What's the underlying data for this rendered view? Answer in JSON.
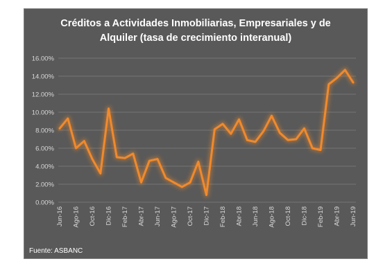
{
  "chart_data": {
    "type": "line",
    "title": "Créditos a Actividades Inmobiliarias, Empresariales y de Alquiler (tasa de crecimiento interanual)",
    "title_lines": [
      "Créditos a Actividades Inmobiliarias, Empresariales y de",
      "Alquiler (tasa de crecimiento interanual)"
    ],
    "xlabel": "",
    "ylabel": "",
    "ylim": [
      0,
      16
    ],
    "y_ticks": [
      "0.00%",
      "2.00%",
      "4.00%",
      "6.00%",
      "8.00%",
      "10.00%",
      "12.00%",
      "14.00%",
      "16.00%"
    ],
    "y_tick_values": [
      0,
      2,
      4,
      6,
      8,
      10,
      12,
      14,
      16
    ],
    "x_tick_labels": [
      "Jun-16",
      "Ago-16",
      "Oct-16",
      "Dic-16",
      "Feb-17",
      "Abr-17",
      "Jun-17",
      "Ago-17",
      "Oct-17",
      "Dic-17",
      "Feb-18",
      "Abr-18",
      "Jun-18",
      "Ago-18",
      "Oct-18",
      "Dic-18",
      "Feb-19",
      "Abr-19",
      "Jun-19"
    ],
    "x_tick_every": 2,
    "categories": [
      "Jun-16",
      "Jul-16",
      "Ago-16",
      "Sep-16",
      "Oct-16",
      "Nov-16",
      "Dic-16",
      "Ene-17",
      "Feb-17",
      "Mar-17",
      "Abr-17",
      "May-17",
      "Jun-17",
      "Jul-17",
      "Ago-17",
      "Sep-17",
      "Oct-17",
      "Nov-17",
      "Dic-17",
      "Ene-18",
      "Feb-18",
      "Mar-18",
      "Abr-18",
      "May-18",
      "Jun-18",
      "Jul-18",
      "Ago-18",
      "Sep-18",
      "Oct-18",
      "Nov-18",
      "Dic-18",
      "Ene-19",
      "Feb-19",
      "Mar-19",
      "Abr-19",
      "May-19",
      "Jun-19"
    ],
    "series": [
      {
        "values": [
          8.2,
          9.3,
          6.0,
          6.8,
          4.8,
          3.2,
          10.4,
          5.0,
          4.9,
          5.4,
          2.2,
          4.6,
          4.8,
          2.7,
          2.2,
          1.7,
          2.2,
          4.5,
          0.8,
          8.1,
          8.7,
          7.6,
          9.2,
          6.9,
          6.7,
          7.9,
          9.6,
          7.7,
          6.9,
          7.0,
          8.2,
          6.0,
          5.8,
          13.1,
          13.8,
          14.7,
          13.3
        ],
        "color": "#f08a2c"
      }
    ],
    "grid": true,
    "gridline_color": "#7f7f7f",
    "plot_background": "#595959",
    "legend": "none"
  },
  "source_note": "Fuente: ASBANC"
}
